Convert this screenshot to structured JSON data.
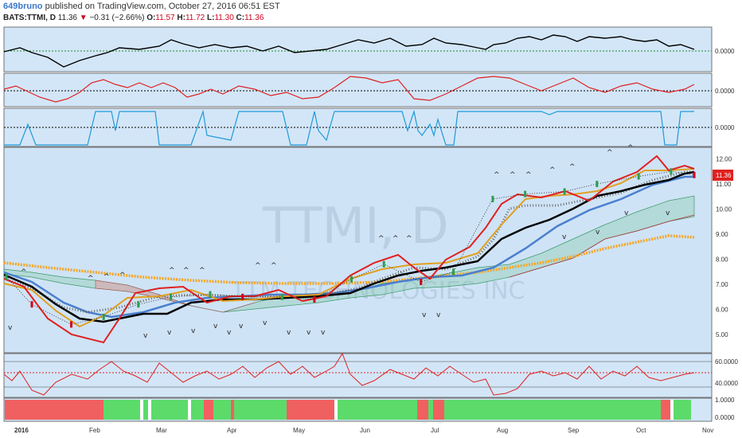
{
  "header": {
    "user": "649bruno",
    "published": "published on TradingView.com, October 27, 2016 06:51 EST",
    "symbol": "BATS:TTMI, D",
    "last": "11.36",
    "change": "−0.31 (−2.66%)",
    "o_label": "O:",
    "o_value": "11.57",
    "h_label": "H:",
    "h_value": "11.72",
    "l_label": "L:",
    "l_value": "11.30",
    "c_label": "C:",
    "c_value": "11.36"
  },
  "watermark": {
    "ticker": "TTMI, D",
    "company": "TTM TECHNOLOGIES INC"
  },
  "colors": {
    "background": "#d3e6f8",
    "price_bg": "#cfe3f6",
    "up": "#2e9e4f",
    "down": "#d0021b",
    "black_line": "#000000",
    "blue_line": "#4a7fcf",
    "orange_line": "#f5a623",
    "red_line": "#e02020",
    "cyan_line": "#1e9ad6",
    "green_bar": "#5cdb6b",
    "red_bar": "#f06060"
  },
  "panels": {
    "panel1": {
      "axis_label": "0.0000"
    },
    "panel2": {
      "axis_label": "0.0000"
    },
    "panel3": {
      "axis_label": "0.0000"
    },
    "price": {
      "y_ticks": [
        "12.00",
        "11.00",
        "10.00",
        "9.00",
        "8.00",
        "7.00",
        "6.00",
        "5.00"
      ],
      "last_price_tag": "11.36"
    },
    "rsi": {
      "y_ticks": [
        "60.0000",
        "40.0000"
      ]
    },
    "bars": {
      "y_ticks": [
        "1.0000",
        "0.0000"
      ]
    }
  },
  "x_axis": {
    "labels": [
      "2016",
      "Feb",
      "Mar",
      "Apr",
      "May",
      "Jun",
      "Jul",
      "Aug",
      "Sep",
      "Oct",
      "Nov"
    ]
  },
  "chart_data": {
    "type": "line",
    "price_range": [
      4.4,
      12.7
    ],
    "dates": [
      "2016-01-04",
      "2016-01-15",
      "2016-02-01",
      "2016-02-15",
      "2016-03-01",
      "2016-03-15",
      "2016-04-01",
      "2016-04-15",
      "2016-05-02",
      "2016-05-16",
      "2016-06-01",
      "2016-06-15",
      "2016-07-01",
      "2016-07-15",
      "2016-08-01",
      "2016-08-15",
      "2016-09-01",
      "2016-09-15",
      "2016-10-03",
      "2016-10-17",
      "2016-10-27"
    ],
    "series": [
      {
        "values": [
          7.3,
          6.2,
          5.4,
          5.7,
          6.2,
          6.5,
          6.6,
          6.5,
          6.5,
          6.4,
          7.2,
          7.8,
          7.1,
          7.5,
          10.4,
          10.6,
          10.7,
          11.0,
          11.3,
          11.5,
          11.36
        ]
      }
    ]
  }
}
